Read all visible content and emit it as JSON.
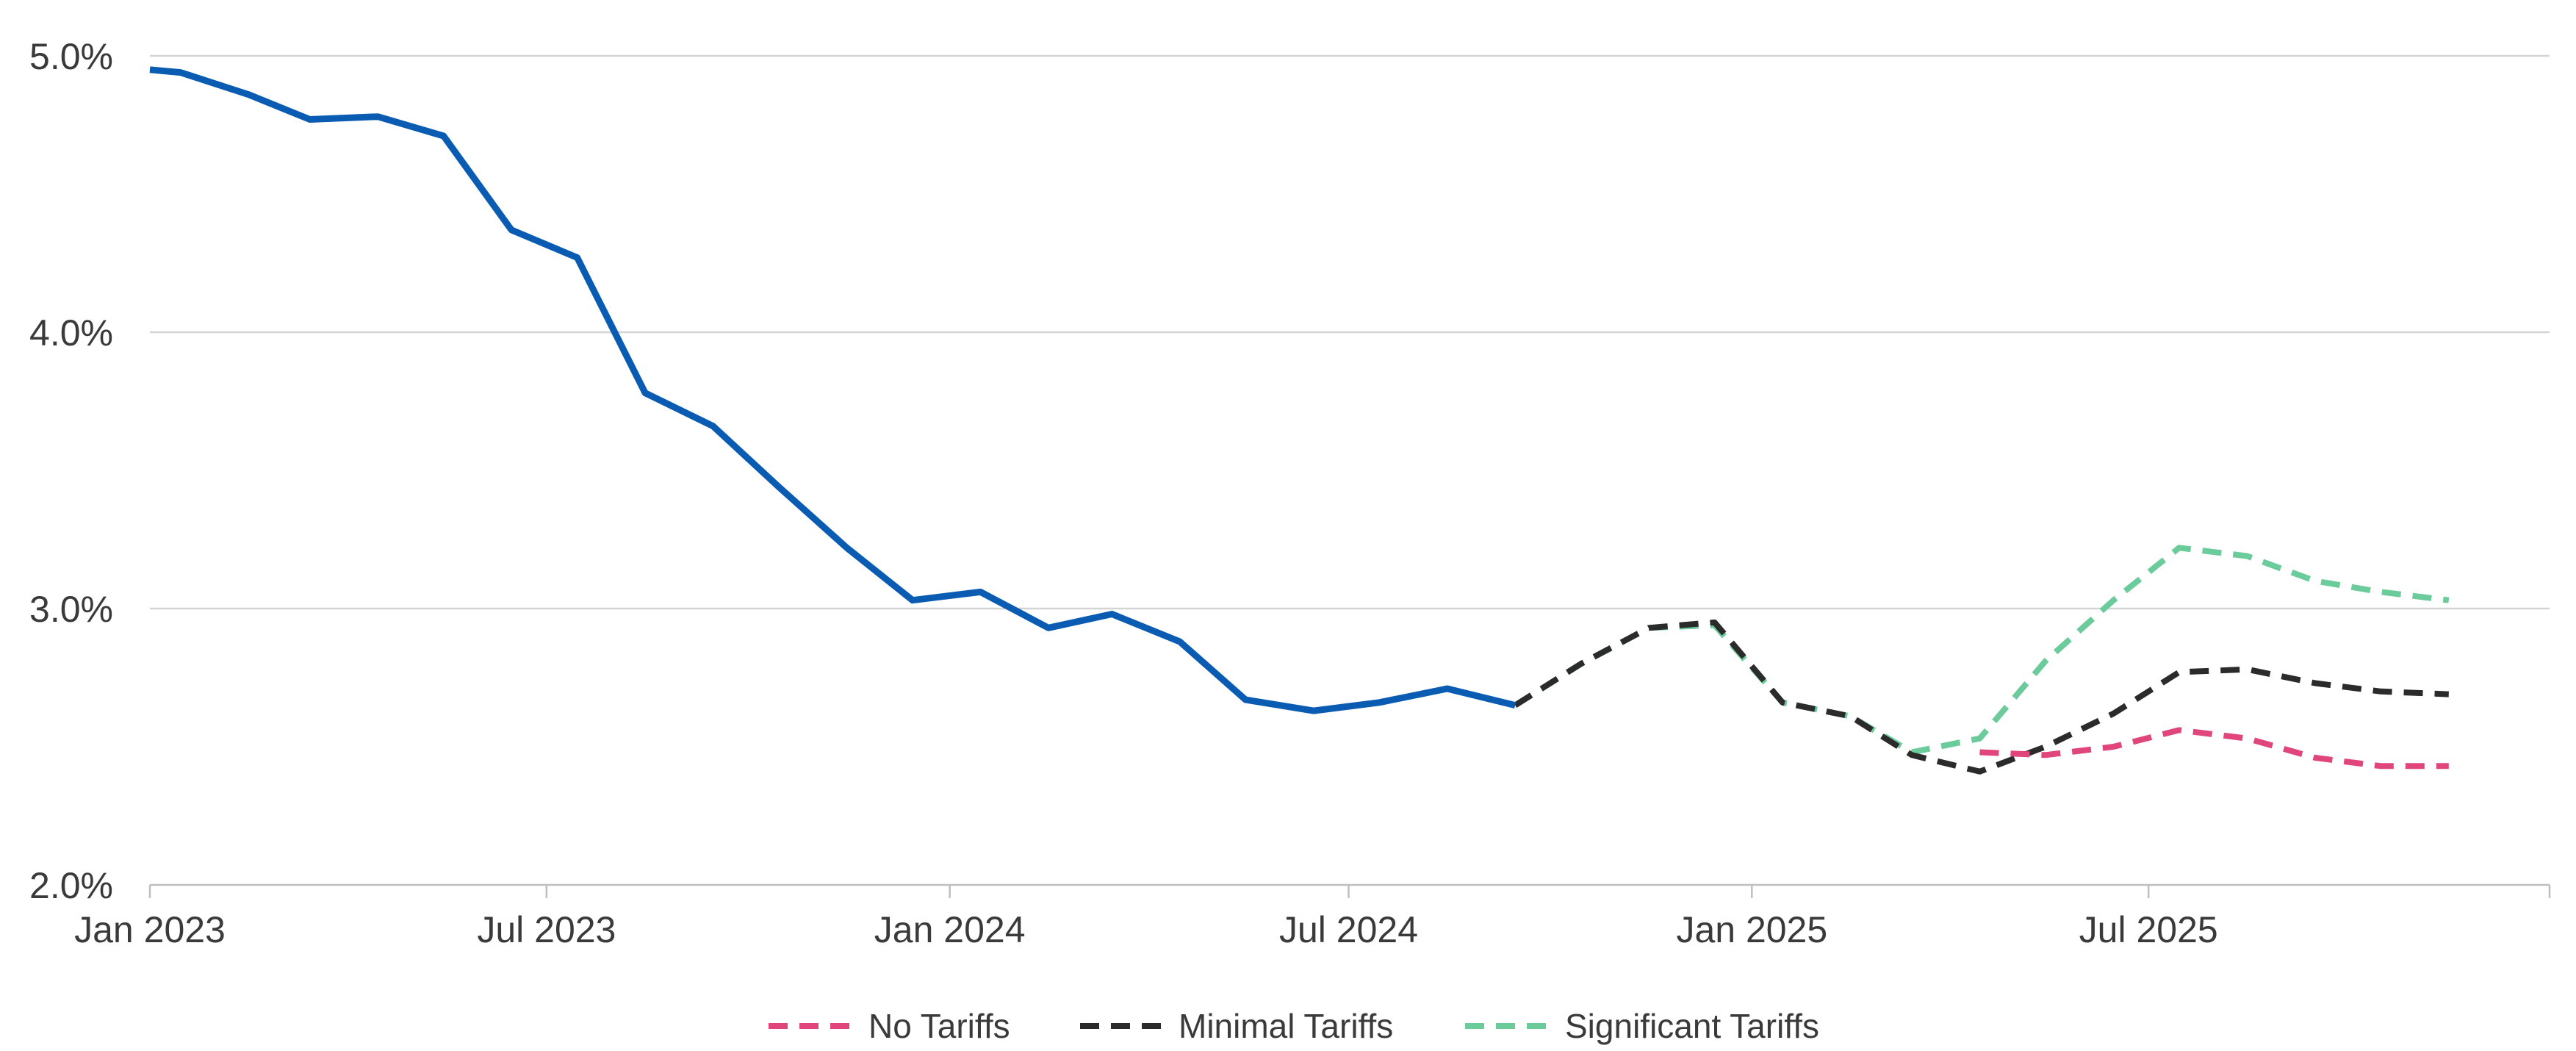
{
  "chart_data": {
    "type": "line",
    "title": "",
    "xlabel": "",
    "ylabel": "",
    "x_range": [
      "2023-01-01",
      "2025-12-31"
    ],
    "ylim": [
      2.0,
      5.0
    ],
    "y_ticks": [
      {
        "value": 2.0,
        "label": "2.0%"
      },
      {
        "value": 3.0,
        "label": "3.0%"
      },
      {
        "value": 4.0,
        "label": "4.0%"
      },
      {
        "value": 5.0,
        "label": "5.0%"
      }
    ],
    "x_ticks": [
      {
        "date": "2023-01-01",
        "label": "Jan 2023"
      },
      {
        "date": "2023-07-01",
        "label": "Jul 2023"
      },
      {
        "date": "2024-01-01",
        "label": "Jan 2024"
      },
      {
        "date": "2024-07-01",
        "label": "Jul 2024"
      },
      {
        "date": "2025-01-01",
        "label": "Jan 2025"
      },
      {
        "date": "2025-07-01",
        "label": "Jul 2025"
      }
    ],
    "grid": true,
    "legend_position": "bottom-center",
    "series": [
      {
        "color": "#0a5cb3",
        "dash": "solid",
        "points": [
          [
            "2023-01-01",
            4.95
          ],
          [
            "2023-01-15",
            4.94
          ],
          [
            "2023-02-15",
            4.86
          ],
          [
            "2023-03-15",
            4.77
          ],
          [
            "2023-04-15",
            4.78
          ],
          [
            "2023-05-15",
            4.71
          ],
          [
            "2023-06-15",
            4.37
          ],
          [
            "2023-07-15",
            4.27
          ],
          [
            "2023-08-15",
            3.78
          ],
          [
            "2023-09-15",
            3.66
          ],
          [
            "2023-10-15",
            3.44
          ],
          [
            "2023-11-15",
            3.22
          ],
          [
            "2023-12-15",
            3.03
          ],
          [
            "2024-01-15",
            3.06
          ],
          [
            "2024-02-15",
            2.93
          ],
          [
            "2024-03-15",
            2.98
          ],
          [
            "2024-04-15",
            2.88
          ],
          [
            "2024-05-15",
            2.67
          ],
          [
            "2024-06-15",
            2.63
          ],
          [
            "2024-07-15",
            2.66
          ],
          [
            "2024-08-15",
            2.71
          ],
          [
            "2024-09-15",
            2.65
          ]
        ]
      },
      {
        "name": "No Tariffs",
        "color": "#e0457b",
        "dash": "dashed",
        "points": [
          [
            "2025-04-15",
            2.48
          ],
          [
            "2025-05-15",
            2.47
          ],
          [
            "2025-06-15",
            2.5
          ],
          [
            "2025-07-15",
            2.56
          ],
          [
            "2025-08-15",
            2.53
          ],
          [
            "2025-09-15",
            2.46
          ],
          [
            "2025-10-15",
            2.43
          ],
          [
            "2025-11-15",
            2.43
          ]
        ]
      },
      {
        "name": "Minimal Tariffs",
        "color": "#2b2b2b",
        "dash": "dashed",
        "points": [
          [
            "2024-09-15",
            2.65
          ],
          [
            "2024-10-15",
            2.8
          ],
          [
            "2024-11-15",
            2.93
          ],
          [
            "2024-12-15",
            2.95
          ],
          [
            "2025-01-15",
            2.66
          ],
          [
            "2025-02-15",
            2.61
          ],
          [
            "2025-03-15",
            2.47
          ],
          [
            "2025-04-15",
            2.41
          ],
          [
            "2025-05-15",
            2.5
          ],
          [
            "2025-06-15",
            2.62
          ],
          [
            "2025-07-15",
            2.77
          ],
          [
            "2025-08-15",
            2.78
          ],
          [
            "2025-09-15",
            2.73
          ],
          [
            "2025-10-15",
            2.7
          ],
          [
            "2025-11-15",
            2.69
          ]
        ]
      },
      {
        "name": "Significant Tariffs",
        "color": "#6ccb9b",
        "dash": "dashed",
        "points": [
          [
            "2024-09-15",
            2.65
          ],
          [
            "2024-10-15",
            2.8
          ],
          [
            "2024-11-15",
            2.93
          ],
          [
            "2024-12-15",
            2.94
          ],
          [
            "2025-01-15",
            2.66
          ],
          [
            "2025-02-15",
            2.61
          ],
          [
            "2025-03-15",
            2.48
          ],
          [
            "2025-04-15",
            2.53
          ],
          [
            "2025-05-15",
            2.81
          ],
          [
            "2025-06-15",
            3.03
          ],
          [
            "2025-07-15",
            3.22
          ],
          [
            "2025-08-15",
            3.19
          ],
          [
            "2025-09-15",
            3.1
          ],
          [
            "2025-10-15",
            3.06
          ],
          [
            "2025-11-15",
            3.03
          ]
        ]
      }
    ]
  }
}
